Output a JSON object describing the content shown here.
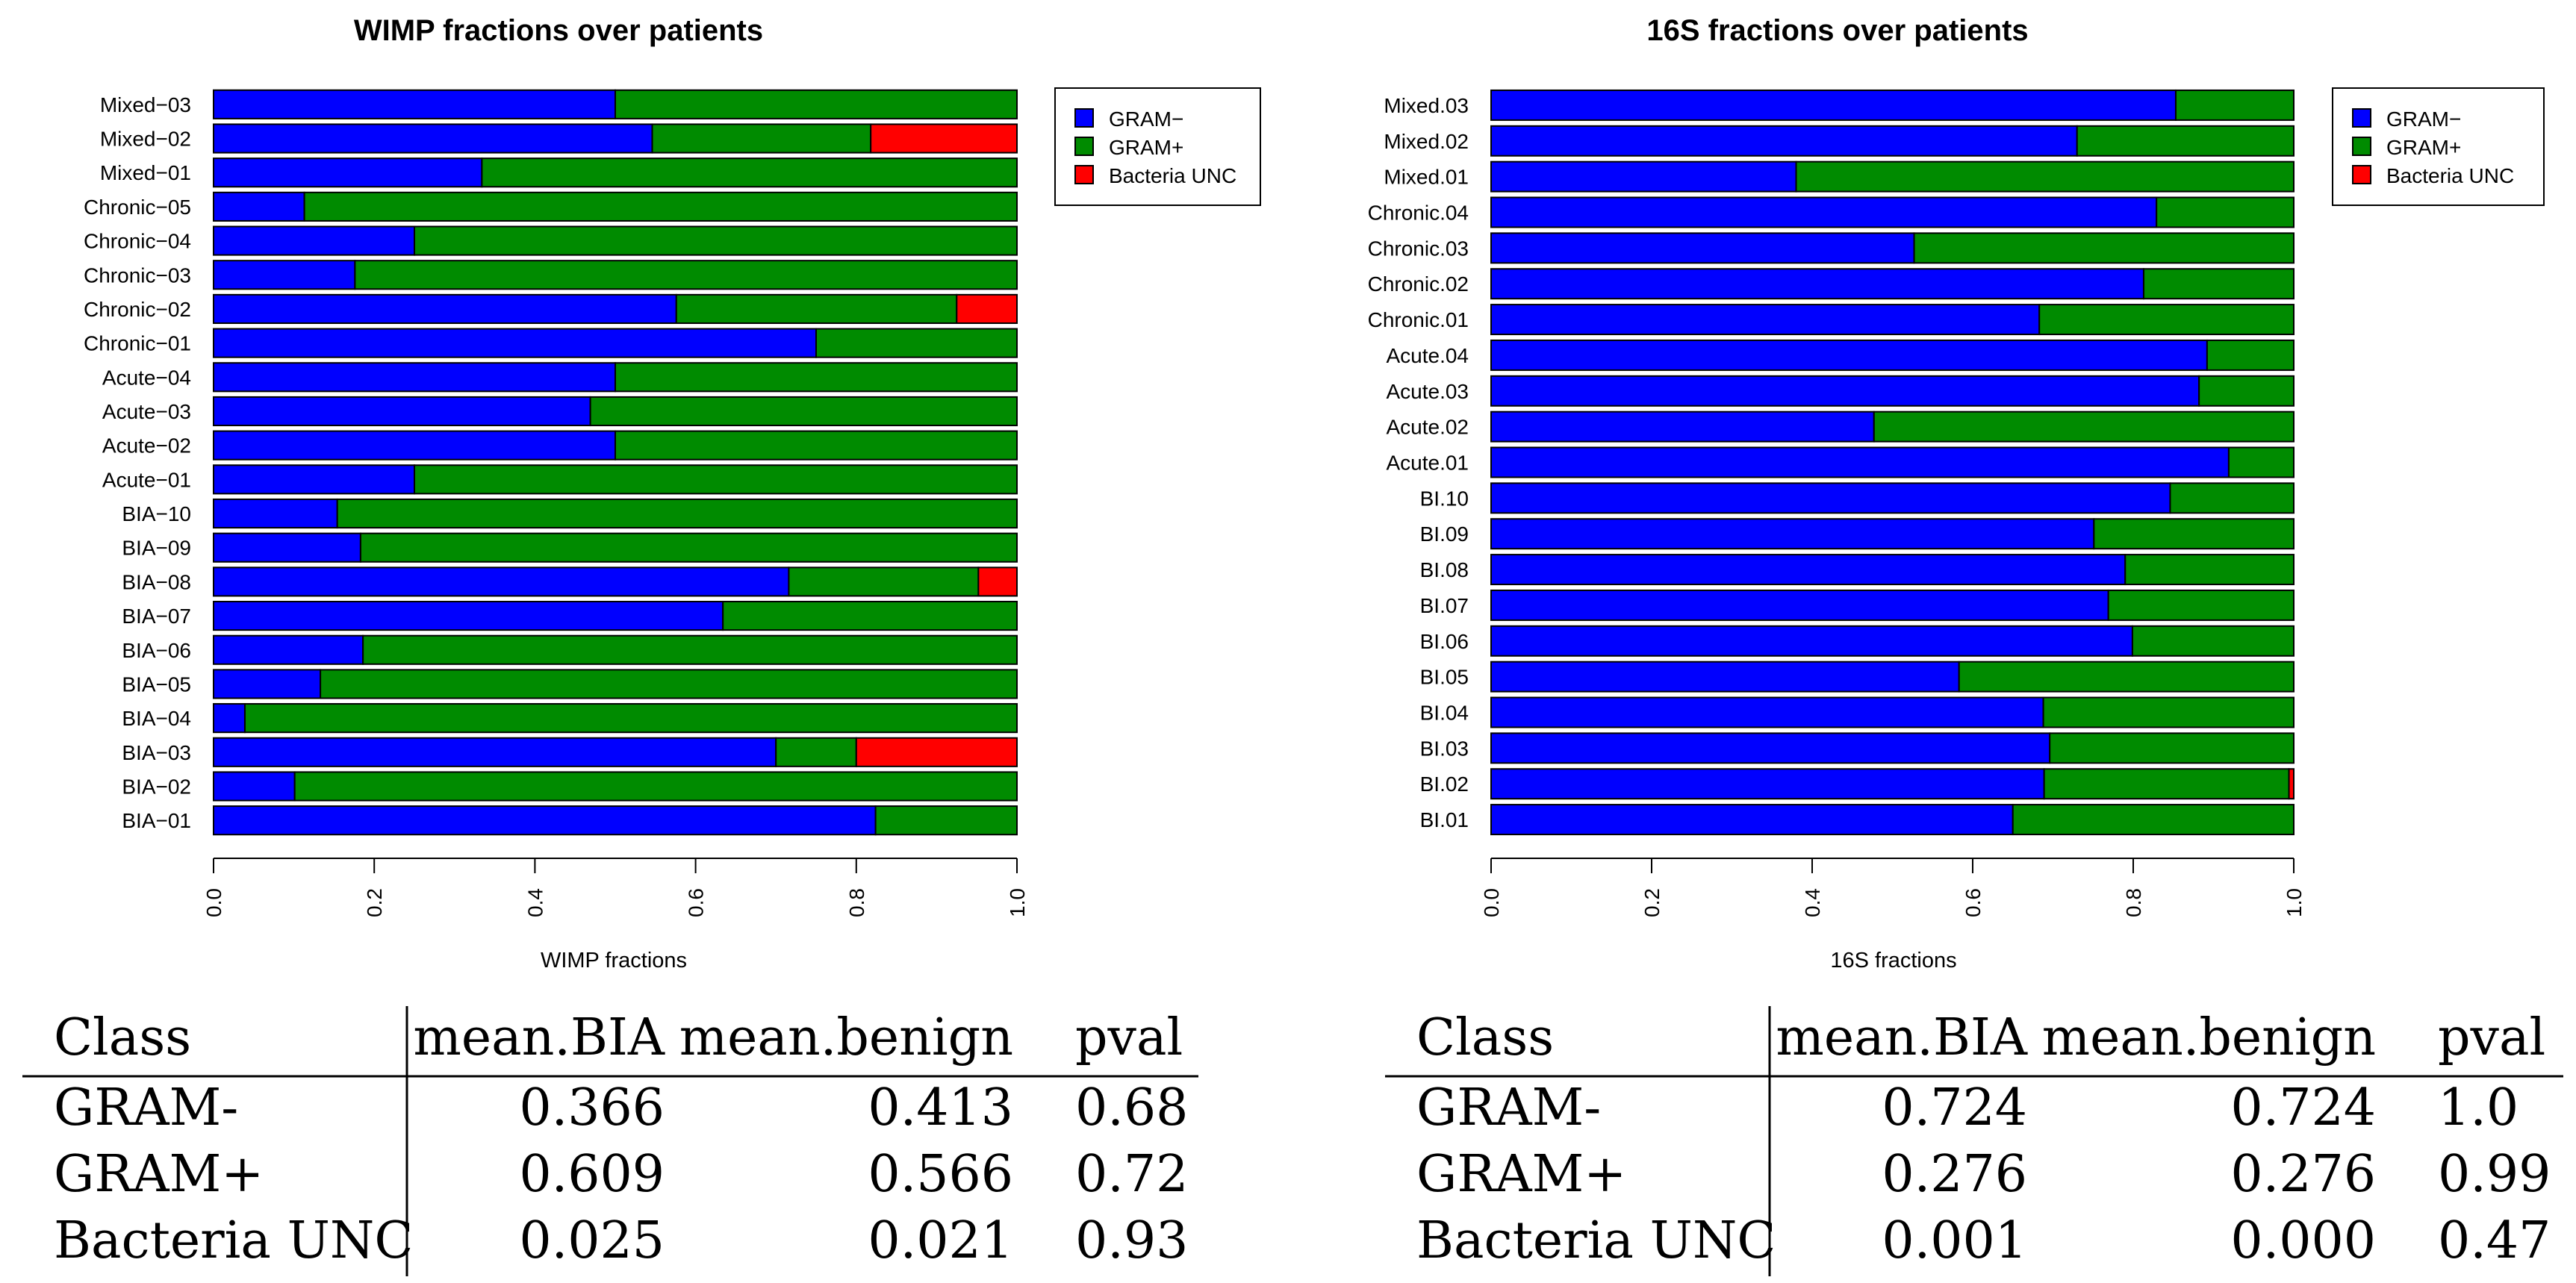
{
  "colors": {
    "gram_neg": "#0000ff",
    "gram_pos": "#008b00",
    "unc": "#ff0000"
  },
  "chart_data": [
    {
      "type": "bar",
      "orientation": "horizontal",
      "stacked": true,
      "title": "WIMP fractions over patients",
      "xlabel": "WIMP fractions",
      "xlim": [
        0,
        1
      ],
      "xticks": [
        "0.0",
        "0.2",
        "0.4",
        "0.6",
        "0.8",
        "1.0"
      ],
      "legend_position": "top-right",
      "categories": [
        "BIA−01",
        "BIA−02",
        "BIA−03",
        "BIA−04",
        "BIA−05",
        "BIA−06",
        "BIA−07",
        "BIA−08",
        "BIA−09",
        "BIA−10",
        "Acute−01",
        "Acute−02",
        "Acute−03",
        "Acute−04",
        "Chronic−01",
        "Chronic−02",
        "Chronic−03",
        "Chronic−04",
        "Chronic−05",
        "Mixed−01",
        "Mixed−02",
        "Mixed−03"
      ],
      "series": [
        {
          "name": "GRAM−",
          "values": [
            0.824,
            0.101,
            0.7,
            0.039,
            0.133,
            0.186,
            0.634,
            0.716,
            0.183,
            0.154,
            0.25,
            0.5,
            0.469,
            0.5,
            0.75,
            0.576,
            0.176,
            0.25,
            0.113,
            0.334,
            0.546,
            0.5
          ]
        },
        {
          "name": "GRAM+",
          "values": [
            0.176,
            0.899,
            0.1,
            0.961,
            0.867,
            0.814,
            0.366,
            0.236,
            0.817,
            0.846,
            0.75,
            0.5,
            0.531,
            0.5,
            0.25,
            0.349,
            0.824,
            0.75,
            0.887,
            0.666,
            0.272,
            0.5
          ]
        },
        {
          "name": "Bacteria UNC",
          "values": [
            0,
            0,
            0.2,
            0,
            0,
            0,
            0,
            0.048,
            0,
            0,
            0,
            0,
            0,
            0,
            0,
            0.075,
            0,
            0,
            0,
            0,
            0.182,
            0
          ]
        }
      ]
    },
    {
      "type": "bar",
      "orientation": "horizontal",
      "stacked": true,
      "title": "16S fractions over patients",
      "xlabel": "16S fractions",
      "xlim": [
        0,
        1
      ],
      "xticks": [
        "0.0",
        "0.2",
        "0.4",
        "0.6",
        "0.8",
        "1.0"
      ],
      "legend_position": "top-right",
      "categories": [
        "BI.01",
        "BI.02",
        "BI.03",
        "BI.04",
        "BI.05",
        "BI.06",
        "BI.07",
        "BI.08",
        "BI.09",
        "BI.10",
        "Acute.01",
        "Acute.02",
        "Acute.03",
        "Acute.04",
        "Chronic.01",
        "Chronic.02",
        "Chronic.03",
        "Chronic.04",
        "Mixed.01",
        "Mixed.02",
        "Mixed.03"
      ],
      "series": [
        {
          "name": "GRAM−",
          "values": [
            0.65,
            0.689,
            0.696,
            0.688,
            0.583,
            0.799,
            0.769,
            0.79,
            0.751,
            0.846,
            0.919,
            0.477,
            0.882,
            0.892,
            0.683,
            0.813,
            0.527,
            0.829,
            0.38,
            0.73,
            0.853
          ]
        },
        {
          "name": "GRAM+",
          "values": [
            0.35,
            0.305,
            0.304,
            0.312,
            0.417,
            0.201,
            0.231,
            0.21,
            0.249,
            0.154,
            0.081,
            0.523,
            0.118,
            0.108,
            0.317,
            0.187,
            0.473,
            0.171,
            0.62,
            0.27,
            0.147
          ]
        },
        {
          "name": "Bacteria UNC",
          "values": [
            0,
            0.006,
            0,
            0,
            0,
            0,
            0,
            0,
            0,
            0,
            0,
            0,
            0,
            0,
            0,
            0,
            0,
            0,
            0,
            0,
            0
          ]
        }
      ]
    },
    {
      "type": "table",
      "columns": [
        "Class",
        "mean.BIA",
        "mean.benign",
        "pval"
      ],
      "rows": [
        [
          "GRAM-",
          "0.366",
          "0.413",
          "0.68"
        ],
        [
          "GRAM+",
          "0.609",
          "0.566",
          "0.72"
        ],
        [
          "Bacteria UNC",
          "0.025",
          "0.021",
          "0.93"
        ]
      ]
    },
    {
      "type": "table",
      "columns": [
        "Class",
        "mean.BIA",
        "mean.benign",
        "pval"
      ],
      "rows": [
        [
          "GRAM-",
          "0.724",
          "0.724",
          "1.0"
        ],
        [
          "GRAM+",
          "0.276",
          "0.276",
          "0.99"
        ],
        [
          "Bacteria UNC",
          "0.001",
          "0.000",
          "0.47"
        ]
      ]
    }
  ]
}
